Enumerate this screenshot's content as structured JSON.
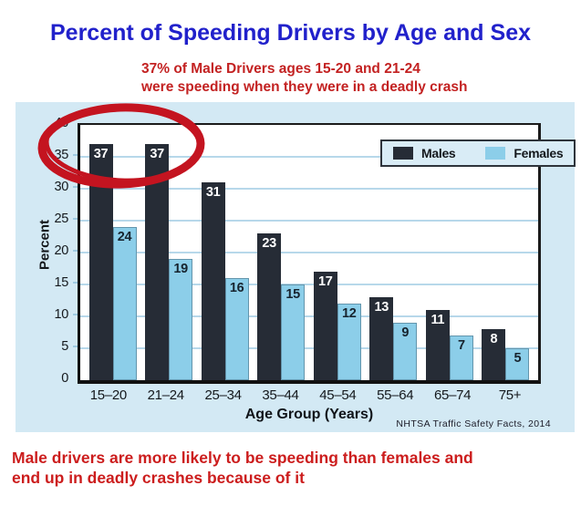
{
  "page": {
    "title": "Percent of Speeding Drivers by Age and Sex",
    "subtitle_line1": "37% of Male Drivers ages 15-20 and 21-24",
    "subtitle_line2": "were speeding when they were in a deadly crash",
    "footer_line1": "Male drivers are more likely to be speeding than females and",
    "footer_line2": "end up in deadly crashes because of it",
    "source": "NHTSA Traffic Safety Facts, 2014"
  },
  "chart_data": {
    "type": "bar",
    "categories": [
      "15–20",
      "21–24",
      "25–34",
      "35–44",
      "45–54",
      "55–64",
      "65–74",
      "75+"
    ],
    "series": [
      {
        "name": "Males",
        "color": "#262c36",
        "values": [
          37,
          37,
          31,
          23,
          17,
          13,
          11,
          8
        ]
      },
      {
        "name": "Females",
        "color": "#8ccee9",
        "values": [
          24,
          19,
          16,
          15,
          12,
          9,
          7,
          5
        ]
      }
    ],
    "xlabel": "Age Group (Years)",
    "ylabel": "Percent",
    "ylim": [
      0,
      40
    ],
    "ytick_step": 5,
    "grid": true,
    "legend_position": "top-right",
    "annotation": {
      "shape": "hand-drawn-ellipse",
      "color": "#c41420",
      "meaning": "circles the 37% bars for male drivers ages 15-20 and 21-24"
    },
    "colors": {
      "panel_background": "#d3e9f4",
      "plot_background": "#ffffff",
      "gridline": "#b7d8ea",
      "axis": "#111111",
      "title_text": "#2121cb",
      "caption_text": "#c32222",
      "footer_text": "#cc1d1d"
    }
  }
}
